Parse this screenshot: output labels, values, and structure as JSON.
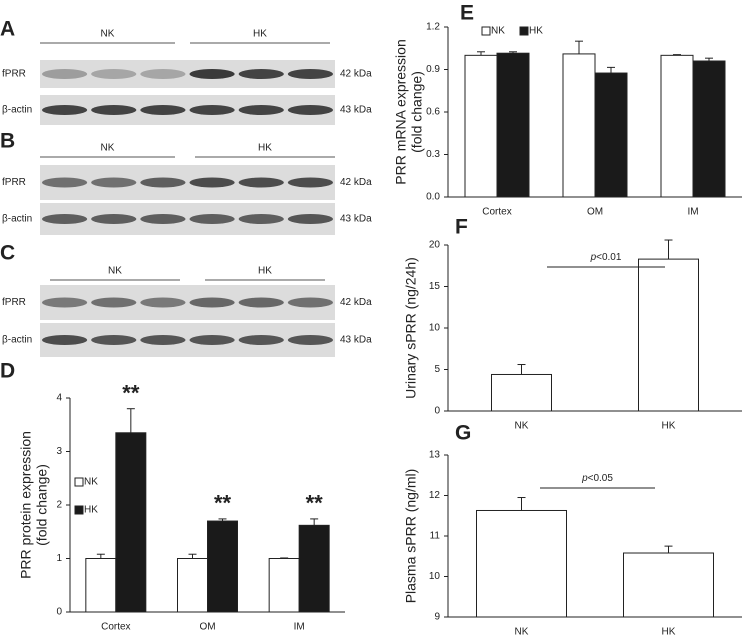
{
  "blots": [
    {
      "panel": "A",
      "groups": [
        "NK",
        "HK"
      ],
      "rows": [
        {
          "label": "fPRR",
          "size": "42 kDa"
        },
        {
          "label": "β-actin",
          "size": "43 kDa"
        }
      ]
    },
    {
      "panel": "B",
      "groups": [
        "NK",
        "HK"
      ],
      "rows": [
        {
          "label": "fPRR",
          "size": "42 kDa"
        },
        {
          "label": "β-actin",
          "size": "43 kDa"
        }
      ]
    },
    {
      "panel": "C",
      "groups": [
        "NK",
        "HK"
      ],
      "rows": [
        {
          "label": "fPRR",
          "size": "42 kDa"
        },
        {
          "label": "β-actin",
          "size": "43 kDa"
        }
      ]
    }
  ],
  "chart_data": [
    {
      "type": "bar",
      "panel": "D",
      "ylabel": [
        "PRR protein expression",
        "(fold change)"
      ],
      "categories": [
        "Cortex",
        "OM",
        "IM"
      ],
      "series": [
        {
          "name": "NK",
          "color": "#ffffff",
          "values": [
            1.0,
            1.0,
            1.0
          ],
          "errors": [
            0.08,
            0.08,
            0.01
          ]
        },
        {
          "name": "HK",
          "color": "#1a1a1a",
          "values": [
            3.35,
            1.7,
            1.62
          ],
          "errors": [
            0.45,
            0.04,
            0.12
          ]
        }
      ],
      "annotations": [
        "**",
        "**",
        "**"
      ],
      "ylim": [
        0,
        4
      ],
      "yticks": [
        0,
        1,
        2,
        3,
        4
      ]
    },
    {
      "type": "bar",
      "panel": "E",
      "ylabel": [
        "PRR mRNA expression",
        "(fold change)"
      ],
      "categories": [
        "Cortex",
        "OM",
        "IM"
      ],
      "series": [
        {
          "name": "NK",
          "color": "#ffffff",
          "values": [
            1.0,
            1.01,
            1.0
          ],
          "errors": [
            0.025,
            0.09,
            0.005
          ]
        },
        {
          "name": "HK",
          "color": "#1a1a1a",
          "values": [
            1.015,
            0.875,
            0.96
          ],
          "errors": [
            0.01,
            0.04,
            0.02
          ]
        }
      ],
      "ylim": [
        0,
        1.2
      ],
      "yticks": [
        {
          "value": 0,
          "label": "0.0"
        },
        0.3,
        0.6,
        0.9,
        1.2
      ]
    },
    {
      "type": "bar",
      "panel": "F",
      "ylabel": [
        "Urinary sPRR (ng/24h)"
      ],
      "categories": [
        "NK",
        "HK"
      ],
      "series": [
        {
          "color": "#ffffff",
          "values": [
            4.4,
            18.3
          ],
          "errors": [
            1.2,
            2.3
          ]
        }
      ],
      "significance": {
        "italic": "p",
        "text": "<0.01"
      },
      "ylim": [
        0,
        20
      ],
      "yticks": [
        0,
        5,
        10,
        15,
        20
      ]
    },
    {
      "type": "bar",
      "panel": "G",
      "ylabel": [
        "Plasma  sPRR (ng/ml)"
      ],
      "categories": [
        "NK",
        "HK"
      ],
      "series": [
        {
          "color": "#ffffff",
          "values": [
            11.63,
            10.58
          ],
          "errors": [
            0.32,
            0.17
          ]
        }
      ],
      "significance": {
        "italic": "p",
        "text": "<0.05"
      },
      "ylim": [
        9,
        13
      ],
      "yticks": [
        9,
        10,
        11,
        12,
        13
      ]
    }
  ]
}
